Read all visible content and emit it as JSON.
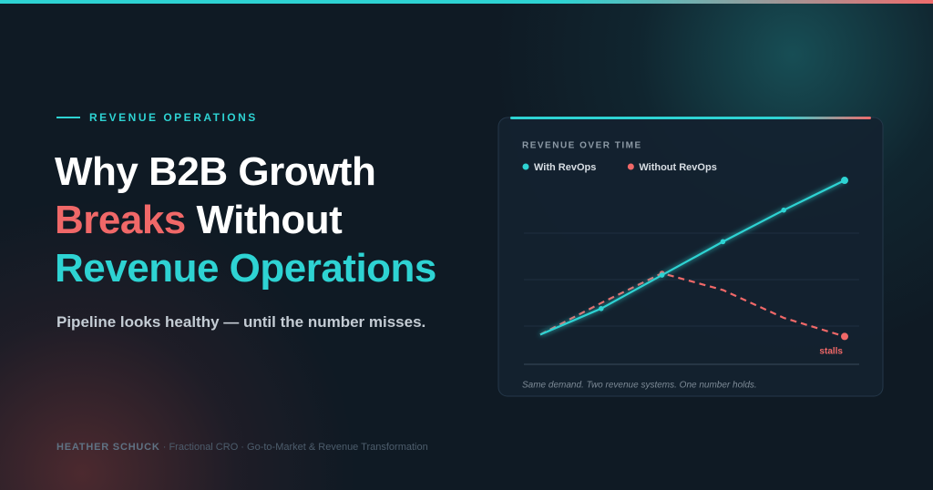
{
  "header": {
    "eyebrow": "REVENUE OPERATIONS",
    "headline": {
      "line1": "Why B2B Growth",
      "line2_highlight": "Breaks",
      "line2_rest": "Without",
      "line3": "Revenue Operations"
    },
    "subtitle": "Pipeline looks healthy — until the number misses."
  },
  "footer": {
    "name": "HEATHER SCHUCK",
    "tagline": "· Fractional CRO · Go-to-Market & Revenue Transformation"
  },
  "chart_data": {
    "type": "line",
    "title": "REVENUE OVER TIME",
    "categories": [
      null,
      null,
      null,
      null,
      null,
      null
    ],
    "series": [
      {
        "name": "With RevOps",
        "color": "#2ed3d3",
        "values": [
          16,
          30,
          48,
          66,
          83,
          99
        ]
      },
      {
        "name": "Without RevOps",
        "color": "#f06868",
        "values": [
          16,
          33,
          49,
          40,
          25,
          15
        ]
      }
    ],
    "ylim": [
      0,
      100
    ],
    "annotation": "stalls",
    "caption": "Same demand. Two revenue systems. One number holds."
  }
}
